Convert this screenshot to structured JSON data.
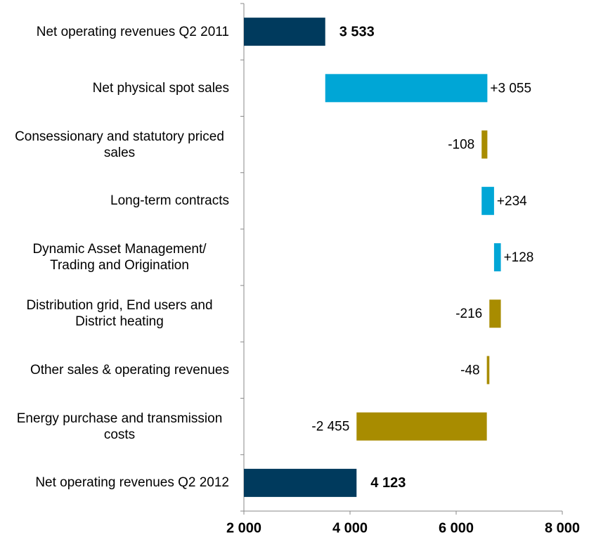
{
  "chart_data": {
    "type": "waterfall",
    "categories": [
      "Net operating revenues Q2 2011",
      "Net physical spot sales",
      "Consessionary and statutory priced sales",
      "Long-term contracts",
      "Dynamic Asset Management/ Trading and Origination",
      "Distribution grid, End users and District heating",
      "Other sales & operating revenues",
      "Energy purchase and transmission costs",
      "Net operating revenues Q2 2012"
    ],
    "values": [
      3533,
      3055,
      -108,
      234,
      128,
      -216,
      -48,
      -2455,
      4123
    ],
    "value_labels": [
      "3 533",
      "+3 055",
      "-108",
      "+234",
      "+128",
      "-216",
      "-48",
      "-2 455",
      "4 123"
    ],
    "measure": [
      "total",
      "relative",
      "relative",
      "relative",
      "relative",
      "relative",
      "relative",
      "relative",
      "total"
    ],
    "colors": {
      "total": "#003a5d",
      "increase": "#00a6d6",
      "decrease": "#a88c00"
    },
    "xlim": [
      2000,
      8000
    ],
    "xticks": [
      {
        "value": 2000,
        "label": "2 000"
      },
      {
        "value": 4000,
        "label": "4 000"
      },
      {
        "value": 6000,
        "label": "6 000"
      },
      {
        "value": 8000,
        "label": "8 000"
      }
    ]
  }
}
